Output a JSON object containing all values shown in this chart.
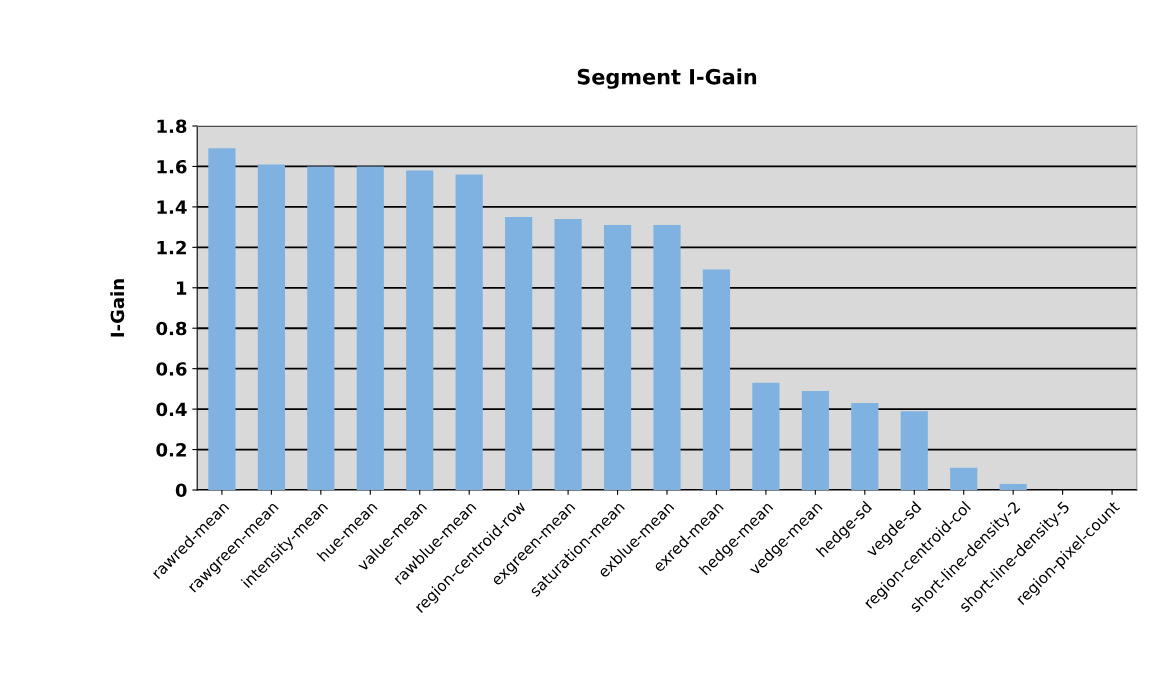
{
  "chart_data": {
    "type": "bar",
    "title": "Segment I-Gain",
    "ylabel": "I-Gain",
    "categories": [
      "rawred-mean",
      "rawgreen-mean",
      "intensity-mean",
      "hue-mean",
      "value-mean",
      "rawblue-mean",
      "region-centroid-row",
      "exgreen-mean",
      "saturation-mean",
      "exblue-mean",
      "exred-mean",
      "hedge-mean",
      "vedge-mean",
      "hedge-sd",
      "vegde-sd",
      "region-centroid-col",
      "short-line-density-2",
      "short-line-density-5",
      "region-pixel-count"
    ],
    "values": [
      1.69,
      1.61,
      1.6,
      1.6,
      1.58,
      1.56,
      1.35,
      1.34,
      1.31,
      1.31,
      1.09,
      0.53,
      0.49,
      0.43,
      0.39,
      0.11,
      0.03,
      0,
      0
    ],
    "color": "#7fb2e0",
    "ylim": [
      0,
      1.8
    ],
    "yticks": [
      0,
      {
        "value": 0.2,
        "label": "0.2"
      },
      {
        "value": 0.4,
        "label": "0.4"
      },
      {
        "value": 0.6,
        "label": "0.6"
      },
      {
        "value": 0.8,
        "label": "0.8"
      },
      1,
      {
        "value": 1.2,
        "label": "1.2"
      },
      {
        "value": 1.4,
        "label": "1.4"
      },
      {
        "value": 1.6,
        "label": "1.6"
      },
      {
        "value": 1.8,
        "label": "1.8"
      }
    ],
    "grid": "y",
    "legend": false
  }
}
